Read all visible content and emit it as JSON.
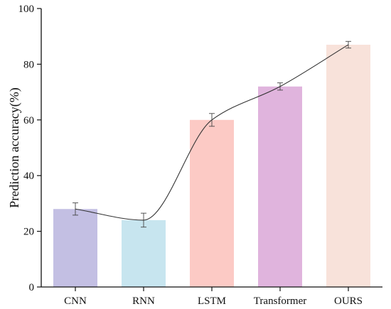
{
  "chart_data": {
    "type": "bar",
    "categories": [
      "CNN",
      "RNN",
      "LSTM",
      "Transformer",
      "OURS"
    ],
    "values": [
      28,
      24,
      60,
      72,
      87
    ],
    "errors": [
      2.2,
      2.5,
      2.3,
      1.3,
      1.2
    ],
    "bar_colors": [
      "#c3bfe3",
      "#c7e5ef",
      "#fccac5",
      "#e0b4dd",
      "#f8e2da"
    ],
    "trend_line": "smooth curve through bar tops",
    "title": "",
    "xlabel": "",
    "ylabel": "Prediction accuracy(%)",
    "ylim": [
      0,
      100
    ],
    "yticks": [
      0,
      20,
      40,
      60,
      80,
      100
    ],
    "grid": false,
    "legend": "none"
  }
}
